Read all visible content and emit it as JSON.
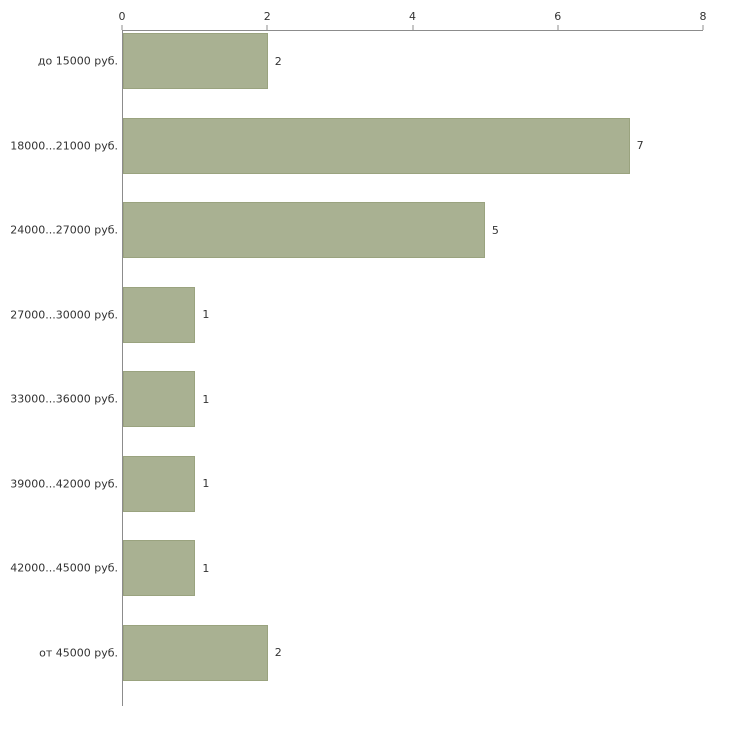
{
  "chart_data": {
    "type": "bar",
    "orientation": "horizontal",
    "title": "",
    "xlabel": "",
    "ylabel": "",
    "categories": [
      "до 15000 руб.",
      "18000...21000 руб.",
      "24000...27000 руб.",
      "27000...30000 руб.",
      "33000...36000 руб.",
      "39000...42000 руб.",
      "42000...45000 руб.",
      "от 45000 руб."
    ],
    "values": [
      2,
      7,
      5,
      1,
      1,
      1,
      1,
      2
    ],
    "xlim": [
      0,
      8
    ],
    "x_ticks": [
      0,
      2,
      4,
      6,
      8
    ],
    "grid": false,
    "legend": "none",
    "bar_color": "#a9b192",
    "bar_border_color": "#9aa37f",
    "axis_color": "#8c8c8c",
    "text_color": "#333333",
    "background_color": "#ffffff"
  }
}
